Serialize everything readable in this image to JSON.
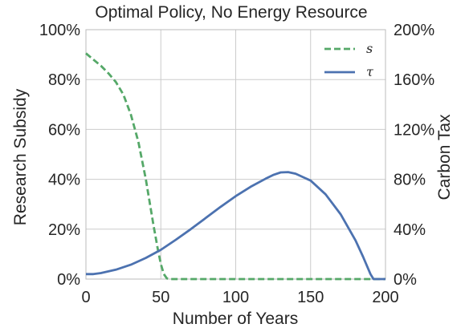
{
  "chart_data": {
    "type": "line",
    "title": "Optimal Policy, No Energy Resource",
    "xlabel": "Number of Years",
    "ylabel_left": "Research Subsidy",
    "ylabel_right": "Carbon Tax",
    "xlim": [
      0,
      200
    ],
    "ylim_left": [
      0,
      100
    ],
    "ylim_right": [
      0,
      200
    ],
    "x_ticks": [
      0,
      50,
      100,
      150,
      200
    ],
    "x_tick_labels": [
      "0",
      "50",
      "100",
      "150",
      "200"
    ],
    "y_left_ticks": [
      0,
      20,
      40,
      60,
      80,
      100
    ],
    "y_left_tick_labels": [
      "0%",
      "20%",
      "40%",
      "60%",
      "80%",
      "100%"
    ],
    "y_right_ticks": [
      0,
      40,
      80,
      120,
      160,
      200
    ],
    "y_right_tick_labels": [
      "0%",
      "40%",
      "80%",
      "120%",
      "160%",
      "200%"
    ],
    "grid": true,
    "legend_position": "top-right",
    "series": [
      {
        "name": "s",
        "axis": "left",
        "color": "#55a868",
        "style": "dashed",
        "x": [
          0,
          5,
          10,
          15,
          20,
          25,
          30,
          35,
          40,
          45,
          48,
          50,
          52,
          54,
          56,
          60,
          80,
          100,
          120,
          140,
          160,
          180,
          200
        ],
        "y": [
          90.5,
          88,
          85.5,
          82.5,
          79,
          74,
          66,
          55,
          40,
          22,
          12,
          6,
          2,
          0.3,
          0,
          0,
          0,
          0,
          0,
          0,
          0,
          0,
          0
        ]
      },
      {
        "name": "τ",
        "axis": "right",
        "color": "#4c72b0",
        "style": "solid",
        "x": [
          0,
          5,
          10,
          20,
          30,
          40,
          50,
          60,
          70,
          80,
          90,
          100,
          110,
          120,
          125,
          130,
          135,
          140,
          150,
          160,
          170,
          180,
          185,
          190,
          192,
          195,
          200
        ],
        "y": [
          4,
          4,
          4.8,
          7.5,
          11.5,
          17,
          23.5,
          31.5,
          40,
          49,
          58,
          66.5,
          74,
          80.5,
          83.5,
          85.5,
          85.8,
          84.5,
          79,
          68,
          52,
          31,
          18,
          4,
          0,
          0,
          0
        ]
      }
    ]
  }
}
